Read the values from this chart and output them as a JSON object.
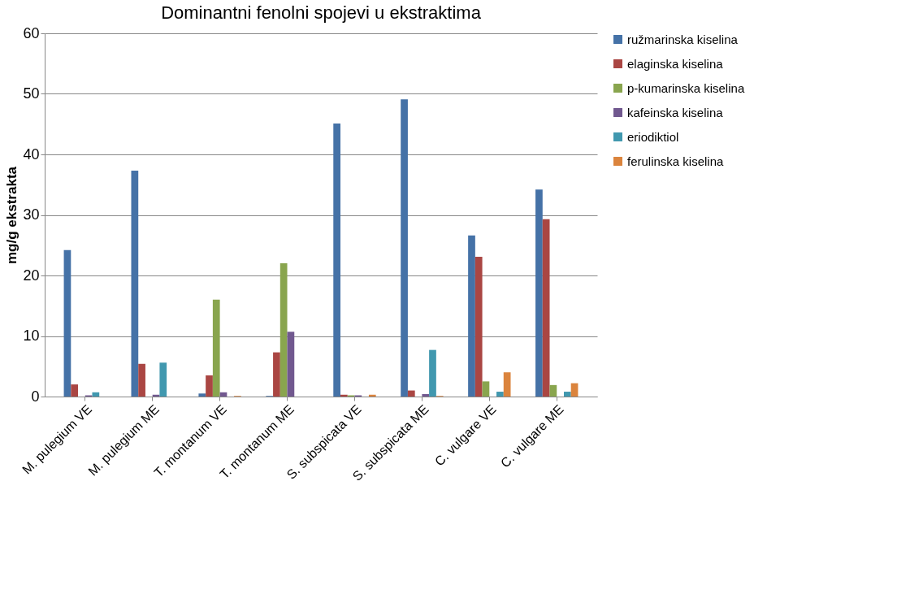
{
  "chart_data": {
    "type": "bar",
    "title": "Dominantni fenolni spojevi u ekstraktima",
    "ylabel": "mg/g ekstrakta",
    "categories": [
      "M. pulegium VE",
      "M. pulegium ME",
      "T. montanum VE",
      "T. montanum ME",
      "S. subspicata VE",
      "S. subspicata ME",
      "C. vulgare VE",
      "C. vulgare ME"
    ],
    "series": [
      {
        "name": "ružmarinska kiselina",
        "color": "#4572a7",
        "values": [
          24.2,
          37.3,
          0.5,
          0.1,
          45.1,
          49.1,
          26.6,
          34.2
        ]
      },
      {
        "name": "elaginska kiselina",
        "color": "#aa4643",
        "values": [
          2.0,
          5.4,
          3.5,
          7.3,
          0.3,
          1.0,
          23.1,
          29.3
        ]
      },
      {
        "name": "p-kumarinska kiselina",
        "color": "#89a54e",
        "values": [
          0,
          0,
          16.0,
          22.0,
          0.2,
          null,
          2.5,
          1.9
        ]
      },
      {
        "name": "kafeinska kiselina",
        "color": "#71588f",
        "values": [
          0.2,
          0.3,
          0.7,
          10.7,
          0.2,
          0.4,
          0,
          null
        ]
      },
      {
        "name": "eriodiktiol",
        "color": "#4198af",
        "values": [
          0.7,
          5.6,
          0,
          0,
          0,
          7.7,
          0.8,
          0.8
        ]
      },
      {
        "name": "ferulinska kiselina",
        "color": "#db843d",
        "values": [
          0,
          0,
          0.1,
          0,
          0.3,
          0.1,
          4.0,
          2.2
        ]
      }
    ],
    "ylim": [
      0,
      60
    ],
    "yticks": [
      0,
      10,
      20,
      30,
      40,
      50,
      60
    ],
    "grid": "y",
    "legend": "right"
  }
}
